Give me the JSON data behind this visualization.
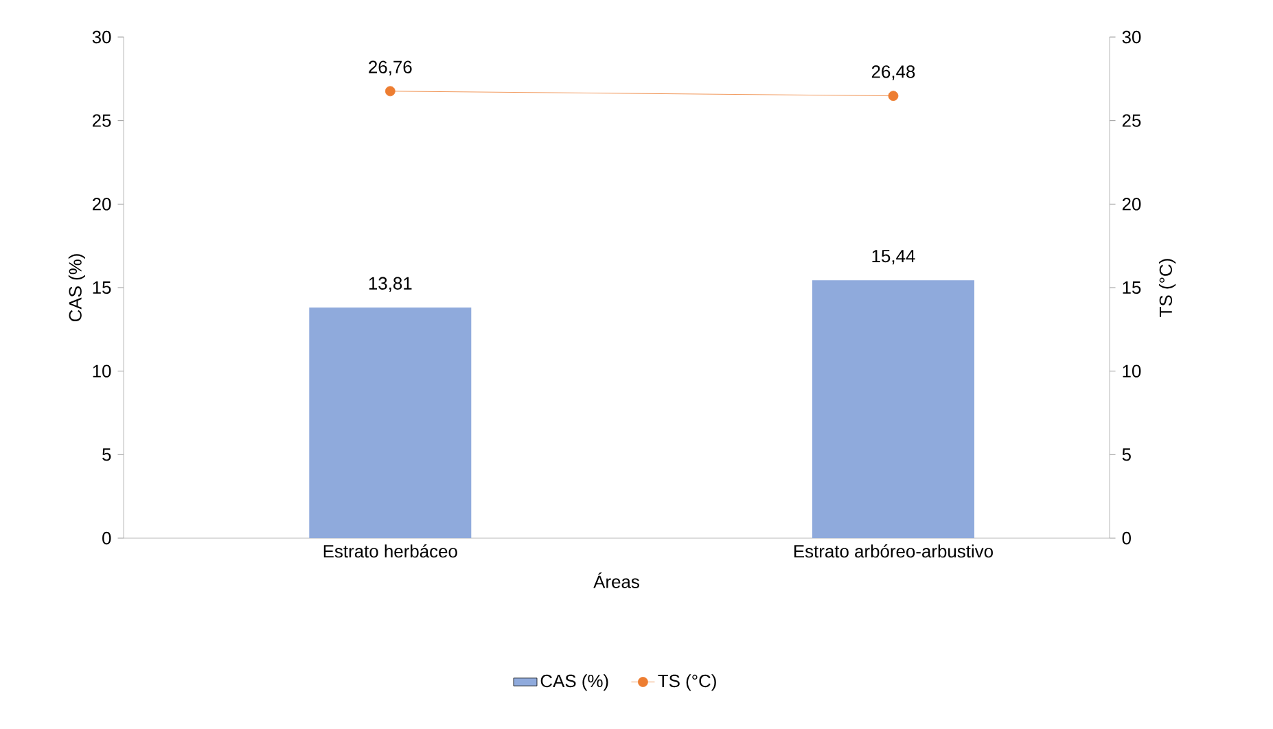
{
  "chart_data": {
    "type": "bar",
    "xlabel": "Áreas",
    "ylabel": "CAS (%)",
    "y2label": "TS (°C)",
    "categories": [
      "Estrato herbáceo",
      "Estrato arbóreo-arbustivo"
    ],
    "series": [
      {
        "name": "CAS (%)",
        "color": "#8faadc",
        "values": [
          13.81,
          15.44
        ],
        "value_labels": [
          "13,81",
          "15,44"
        ]
      },
      {
        "name": "TS (°C)",
        "type": "line",
        "axis": "y2",
        "color": "#ed7d31",
        "marker": "circle",
        "values": [
          26.76,
          26.48
        ],
        "value_labels": [
          "26,76",
          "26,48"
        ]
      }
    ],
    "ylim": [
      0,
      30
    ],
    "yticks": [
      0,
      5,
      10,
      15,
      20,
      25,
      30
    ],
    "y2lim": [
      0,
      30
    ],
    "y2ticks": [
      0,
      5,
      10,
      15,
      20,
      25,
      30
    ],
    "legend": "bottom"
  }
}
